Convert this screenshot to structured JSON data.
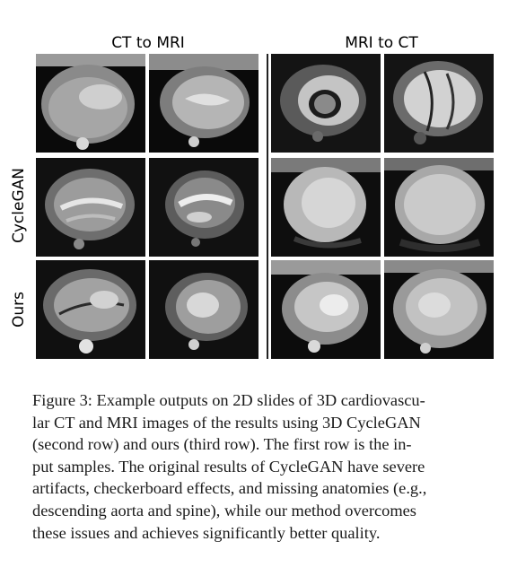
{
  "figure": {
    "column_titles": [
      "CT to MRI",
      "MRI to CT"
    ],
    "row_labels": [
      "CycleGAN",
      "Ours"
    ],
    "caption_lines": [
      "Figure 3: Example outputs on 2D slides of 3D cardiovascu-",
      "lar CT and MRI images of the results using 3D CycleGAN",
      "(second row) and ours (third row).  The first row is the in-",
      "put samples. The original results of CycleGAN have severe",
      "artifacts, checkerboard effects, and missing anatomies (e.g.,",
      "descending aorta and spine), while our method overcomes",
      "these issues and achieves significantly better quality."
    ]
  }
}
